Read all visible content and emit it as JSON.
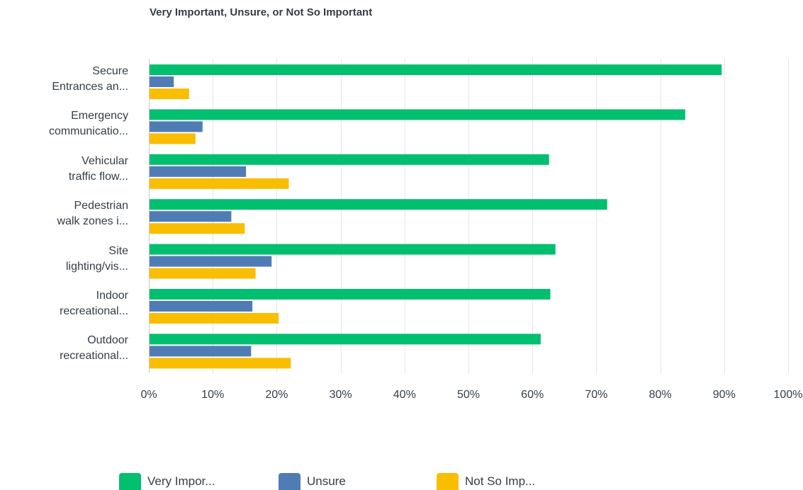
{
  "chart_data": {
    "type": "bar",
    "orientation": "horizontal",
    "title": "Very Important, Unsure, or Not So Important",
    "categories": [
      [
        "Secure",
        "Entrances an..."
      ],
      [
        "Emergency",
        "communicatio..."
      ],
      [
        "Vehicular",
        "traffic flow..."
      ],
      [
        "Pedestrian",
        "walk zones i..."
      ],
      [
        "Site",
        "lighting/vis..."
      ],
      [
        "Indoor",
        "recreational..."
      ],
      [
        "Outdoor",
        "recreational..."
      ]
    ],
    "series": [
      {
        "name": "Very Impor...",
        "color": "#00bf6f",
        "values": [
          89.6,
          83.9,
          62.6,
          71.7,
          63.6,
          62.8,
          61.3
        ]
      },
      {
        "name": "Unsure",
        "color": "#507cb6",
        "values": [
          3.9,
          8.4,
          15.2,
          12.9,
          19.2,
          16.2,
          16.0
        ]
      },
      {
        "name": "Not So Imp...",
        "color": "#f9be00",
        "values": [
          6.3,
          7.3,
          21.9,
          15.0,
          16.7,
          20.3,
          22.2
        ]
      }
    ],
    "x_ticks": [
      "0%",
      "10%",
      "20%",
      "30%",
      "40%",
      "50%",
      "60%",
      "70%",
      "80%",
      "90%",
      "100%"
    ],
    "xlim": [
      0,
      100
    ],
    "grid": true,
    "legend_position": "bottom"
  }
}
